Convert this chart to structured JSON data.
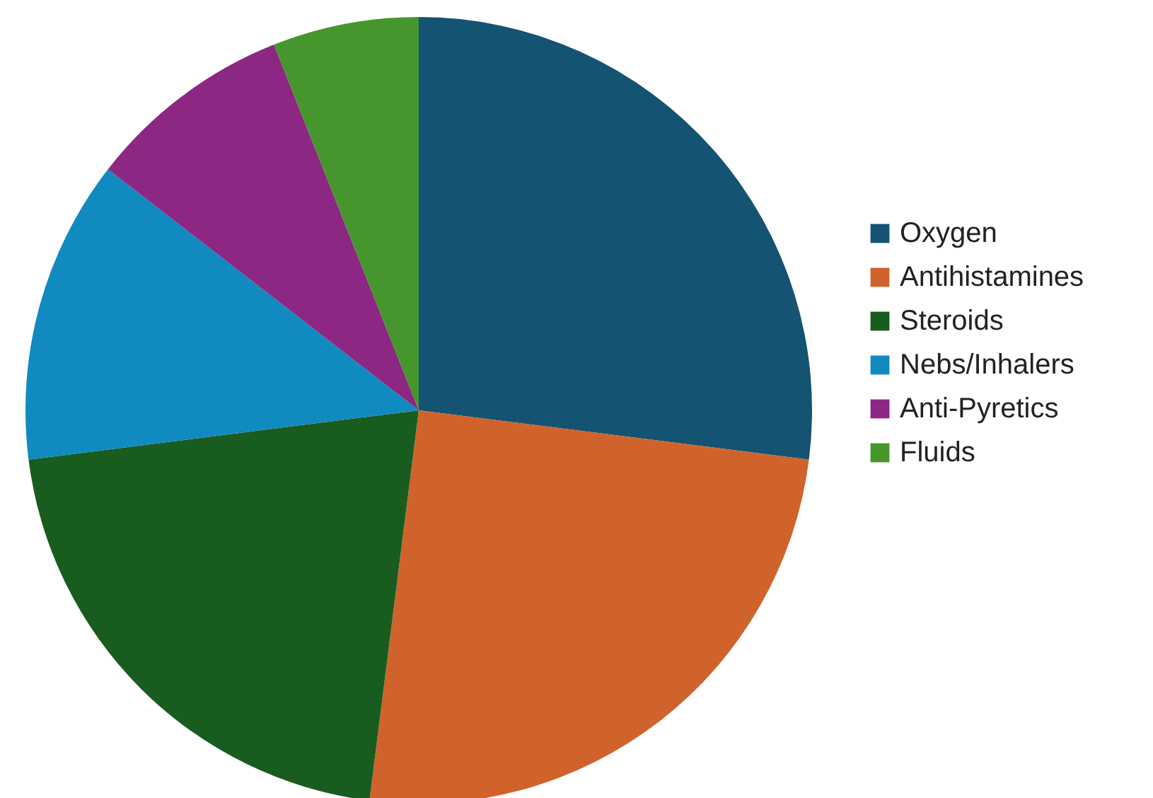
{
  "chart_data": {
    "type": "pie",
    "categories": [
      "Oxygen",
      "Antihistamines",
      "Steroids",
      "Nebs/Inhalers",
      "Anti-Pyretics",
      "Fluids"
    ],
    "values": [
      27,
      25,
      21,
      12.5,
      8.5,
      6
    ],
    "colors": [
      "#145372",
      "#d0632b",
      "#195c1f",
      "#118ac0",
      "#8c2783",
      "#46952d"
    ],
    "legend": "right"
  }
}
